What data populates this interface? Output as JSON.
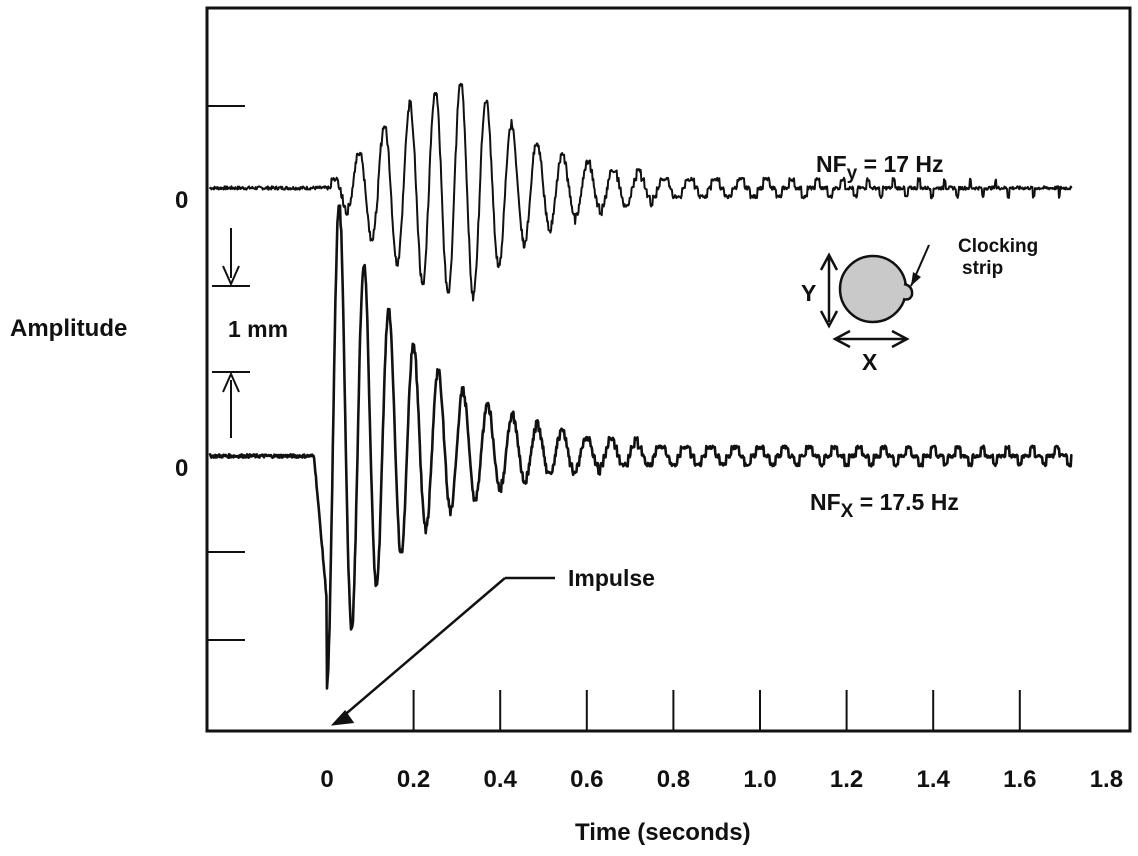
{
  "chart_data": {
    "type": "line",
    "title": "",
    "xlabel": "Time (seconds)",
    "ylabel": "Amplitude",
    "xlim": [
      -0.27,
      1.8
    ],
    "x_ticks": [
      0,
      0.2,
      0.4,
      0.6,
      0.8,
      1.0,
      1.2,
      1.4,
      1.6,
      1.8
    ],
    "x_tick_labels": [
      "0",
      "0.2",
      "0.4",
      "0.6",
      "0.8",
      "1.0",
      "1.2",
      "1.4",
      "1.6",
      "1.8"
    ],
    "y_zero_labels": [
      "0",
      "0"
    ],
    "y_unit": "mm",
    "grid": false,
    "series": [
      {
        "name": "NFy = 17 Hz",
        "label_main": "NF",
        "label_sub": "y",
        "label_rest": " = 17 Hz",
        "natural_frequency_hz": 17,
        "baseline_mm": 0,
        "onset_s": 0.0,
        "peak_amplitude_mm": 1.25,
        "peak_time_s": 0.33,
        "end_time_s": 1.72
      },
      {
        "name": "NFx = 17.5 Hz",
        "label_main": "NF",
        "label_sub": "X",
        "label_rest": " = 17.5 Hz",
        "natural_frequency_hz": 17.5,
        "baseline_mm": -3.1,
        "onset_s": 0.0,
        "peak_amplitude_mm": 3.1,
        "peak_time_s": 0.0,
        "end_time_s": 1.72
      }
    ],
    "annotations": {
      "scale_bar": "1 mm",
      "impulse": "Impulse",
      "inset_y": "Y",
      "inset_x": "X",
      "inset_label_line1": "Clocking",
      "inset_label_line2": "strip"
    }
  },
  "colors": {
    "ink": "#111111",
    "inset_fill": "#c9c9c9",
    "background": "#ffffff"
  }
}
